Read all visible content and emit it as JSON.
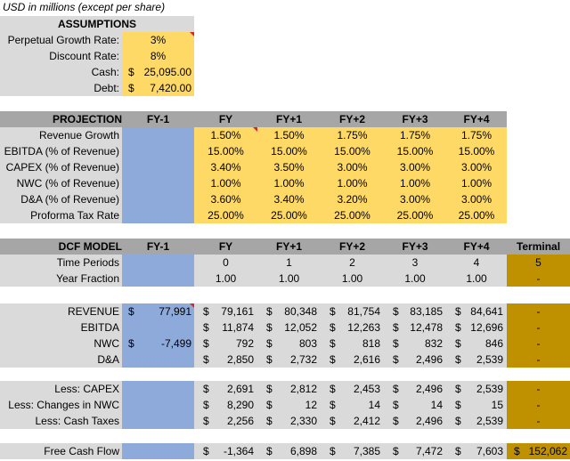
{
  "colors": {
    "section_gray": "#dadada",
    "header_gray": "#a6a6a6",
    "input_yellow": "#ffd966",
    "historic_blue": "#8eaadb",
    "terminal_gold": "#bf9000",
    "comment_red": "#d9262b"
  },
  "icons": {
    "cell_comment_marker": "comment-indicator-icon"
  },
  "note": "USD in millions (except per share)",
  "assumptions": {
    "title": "ASSUMPTIONS",
    "rows": [
      {
        "label": "Perpetual Growth Rate:",
        "currency": "",
        "value": "3%"
      },
      {
        "label": "Discount Rate:",
        "currency": "",
        "value": "8%"
      },
      {
        "label": "Cash:",
        "currency": "$",
        "value": "25,095.00"
      },
      {
        "label": "Debt:",
        "currency": "$",
        "value": "7,420.00"
      }
    ]
  },
  "projection": {
    "title": "PROJECTION",
    "columns": [
      "FY-1",
      "FY",
      "FY+1",
      "FY+2",
      "FY+3",
      "FY+4"
    ],
    "rows": [
      {
        "label": "Revenue Growth",
        "values": [
          "1.50%",
          "1.50%",
          "1.75%",
          "1.75%",
          "1.75%"
        ]
      },
      {
        "label": "EBITDA (% of Revenue)",
        "values": [
          "15.00%",
          "15.00%",
          "15.00%",
          "15.00%",
          "15.00%"
        ]
      },
      {
        "label": "CAPEX (% of Revenue)",
        "values": [
          "3.40%",
          "3.50%",
          "3.00%",
          "3.00%",
          "3.00%"
        ]
      },
      {
        "label": "NWC (% of Revenue)",
        "values": [
          "1.00%",
          "1.00%",
          "1.00%",
          "1.00%",
          "1.00%"
        ]
      },
      {
        "label": "D&A (% of Revenue)",
        "values": [
          "3.60%",
          "3.40%",
          "3.20%",
          "3.00%",
          "3.00%"
        ]
      },
      {
        "label": "Proforma Tax Rate",
        "values": [
          "25.00%",
          "25.00%",
          "25.00%",
          "25.00%",
          "25.00%"
        ]
      }
    ]
  },
  "dcf": {
    "title": "DCF MODEL",
    "columns": [
      "FY-1",
      "FY",
      "FY+1",
      "FY+2",
      "FY+3",
      "FY+4",
      "Terminal"
    ],
    "time_periods": {
      "label": "Time Periods",
      "values": [
        "0",
        "1",
        "2",
        "3",
        "4"
      ],
      "terminal": "5"
    },
    "year_fraction": {
      "label": "Year Fraction",
      "values": [
        "1.00",
        "1.00",
        "1.00",
        "1.00",
        "1.00"
      ],
      "terminal": "-"
    }
  },
  "financials": [
    {
      "label": "REVENUE",
      "hist_currency": "$",
      "hist": "77,991",
      "values": [
        "79,161",
        "80,348",
        "81,754",
        "83,185",
        "84,641"
      ],
      "terminal": "-"
    },
    {
      "label": "EBITDA",
      "hist_currency": "",
      "hist": "",
      "values": [
        "11,874",
        "12,052",
        "12,263",
        "12,478",
        "12,696"
      ],
      "terminal": "-"
    },
    {
      "label": "NWC",
      "hist_currency": "$",
      "hist": "-7,499",
      "values": [
        "792",
        "803",
        "818",
        "832",
        "846"
      ],
      "terminal": "-"
    },
    {
      "label": "D&A",
      "hist_currency": "",
      "hist": "",
      "values": [
        "2,850",
        "2,732",
        "2,616",
        "2,496",
        "2,539"
      ],
      "terminal": "-"
    }
  ],
  "less_items": [
    {
      "label": "Less: CAPEX",
      "values": [
        "2,691",
        "2,812",
        "2,453",
        "2,496",
        "2,539"
      ],
      "terminal": "-"
    },
    {
      "label": "Less: Changes in NWC",
      "values": [
        "8,290",
        "12",
        "14",
        "14",
        "15"
      ],
      "terminal": "-"
    },
    {
      "label": "Less: Cash Taxes",
      "values": [
        "2,256",
        "2,330",
        "2,412",
        "2,496",
        "2,539"
      ],
      "terminal": "-"
    }
  ],
  "fcf": {
    "label": "Free Cash Flow",
    "values": [
      "-1,364",
      "6,898",
      "7,385",
      "7,472",
      "7,603"
    ],
    "terminal_currency": "$",
    "terminal": "152,062"
  },
  "currency_symbol": "$"
}
